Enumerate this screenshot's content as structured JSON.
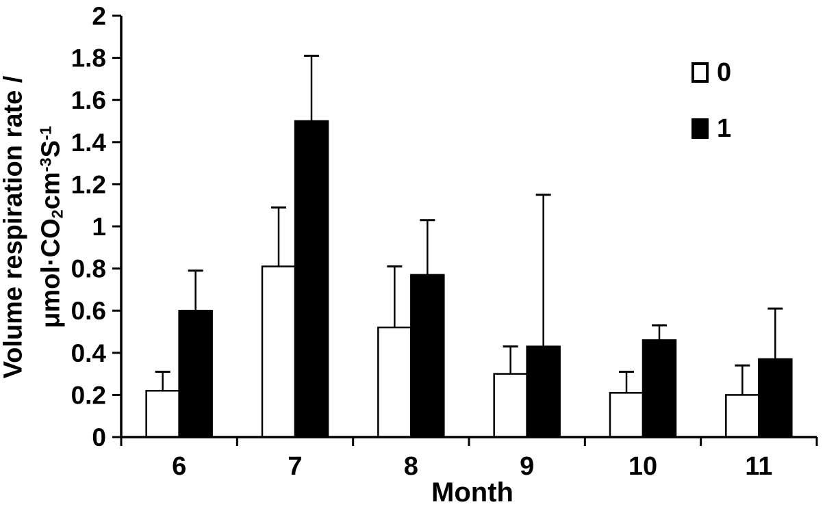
{
  "chart_data": {
    "type": "bar",
    "title": "",
    "xlabel": "Month",
    "ylabel": "Volume respiration rate / μmol·CO2cm-3S-1",
    "ylabel_line1": "Volume respiration rate /",
    "ylabel_line2_segments": [
      {
        "text": "μmol·CO",
        "style": "normal"
      },
      {
        "text": "2",
        "style": "sub"
      },
      {
        "text": "cm",
        "style": "normal"
      },
      {
        "text": "-3",
        "style": "sup"
      },
      {
        "text": "S",
        "style": "normal"
      },
      {
        "text": "-1",
        "style": "sup"
      }
    ],
    "categories": [
      "6",
      "7",
      "8",
      "9",
      "10",
      "11"
    ],
    "series": [
      {
        "name": "0",
        "fill": "#ffffff",
        "stroke": "#000000",
        "values": [
          0.22,
          0.81,
          0.52,
          0.3,
          0.21,
          0.2
        ],
        "errors_plus": [
          0.09,
          0.28,
          0.29,
          0.13,
          0.1,
          0.14
        ]
      },
      {
        "name": "1",
        "fill": "#000000",
        "stroke": "#000000",
        "values": [
          0.6,
          1.5,
          0.77,
          0.43,
          0.46,
          0.37
        ],
        "errors_plus": [
          0.19,
          0.31,
          0.26,
          0.72,
          0.07,
          0.24
        ]
      }
    ],
    "ylim": [
      0,
      2
    ],
    "yticks": [
      0,
      0.2,
      0.4,
      0.6,
      0.8,
      1,
      1.2,
      1.4,
      1.6,
      1.8,
      2
    ],
    "ytick_labels": [
      "0",
      "0.2",
      "0.4",
      "0.6",
      "0.8",
      "1",
      "1.2",
      "1.4",
      "1.6",
      "1.8",
      "2"
    ],
    "grid": false,
    "error_bars": "upper",
    "legend_position": "top-right",
    "colors": {
      "axis": "#000000",
      "background": "#ffffff",
      "bar_open": "#ffffff",
      "bar_filled": "#000000"
    }
  }
}
